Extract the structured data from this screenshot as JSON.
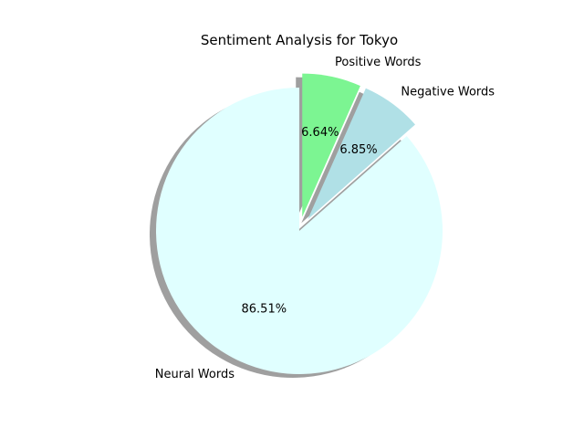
{
  "chart_data": {
    "type": "pie",
    "title": "Sentiment Analysis for Tokyo",
    "labels": [
      "Positive Words",
      "Negative Words",
      "Neural Words"
    ],
    "values": [
      6.64,
      6.85,
      86.51
    ],
    "percent_labels": [
      "6.64%",
      "6.85%",
      "86.51%"
    ],
    "colors": [
      "#7cf592",
      "#b0e0e6",
      "#e0ffff"
    ],
    "explode": [
      0.1,
      0.1,
      0
    ],
    "start_angle_deg": 90,
    "direction": "clockwise",
    "shadow": true,
    "legend": "none"
  }
}
